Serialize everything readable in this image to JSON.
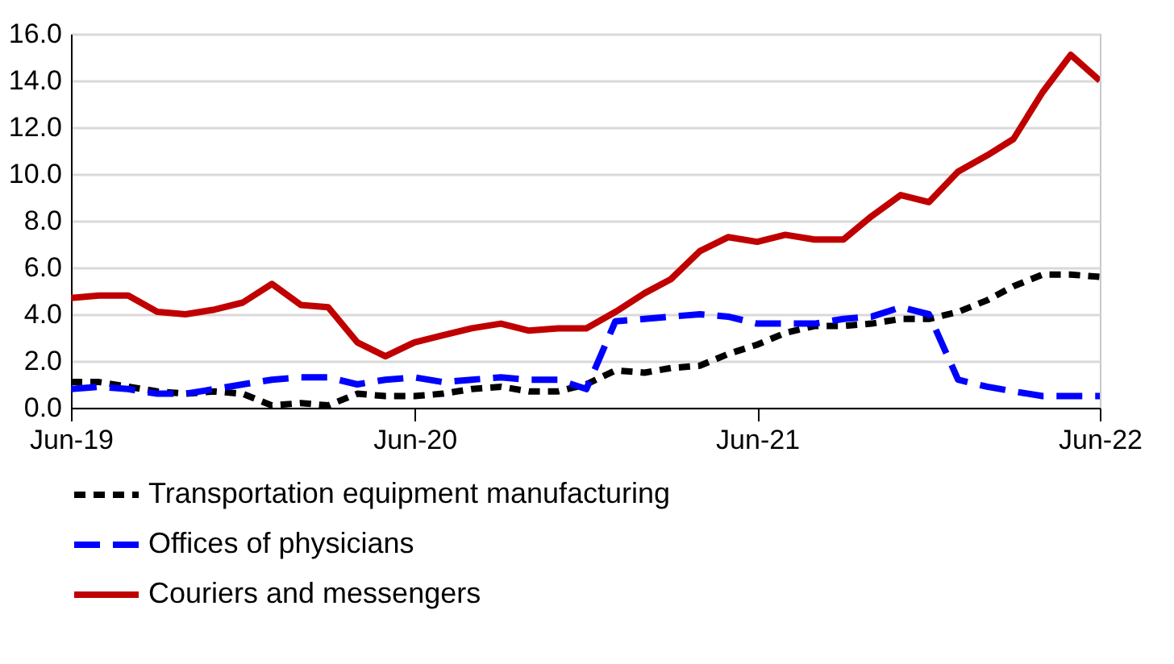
{
  "chart_data": {
    "type": "line",
    "x": [
      "2019-06",
      "2019-07",
      "2019-08",
      "2019-09",
      "2019-10",
      "2019-11",
      "2019-12",
      "2020-01",
      "2020-02",
      "2020-03",
      "2020-04",
      "2020-05",
      "2020-06",
      "2020-07",
      "2020-08",
      "2020-09",
      "2020-10",
      "2020-11",
      "2020-12",
      "2021-01",
      "2021-02",
      "2021-03",
      "2021-04",
      "2021-05",
      "2021-06",
      "2021-07",
      "2021-08",
      "2021-09",
      "2021-10",
      "2021-11",
      "2021-12",
      "2022-01",
      "2022-02",
      "2022-03",
      "2022-04",
      "2022-05",
      "2022-06"
    ],
    "series": [
      {
        "name": "Transportation equipment manufacturing",
        "color": "#000000",
        "line_style": "dotted",
        "values": [
          1.1,
          1.1,
          0.9,
          0.7,
          0.6,
          0.7,
          0.6,
          0.1,
          0.2,
          0.1,
          0.6,
          0.5,
          0.5,
          0.6,
          0.8,
          0.9,
          0.7,
          0.7,
          1.0,
          1.6,
          1.5,
          1.7,
          1.8,
          2.3,
          2.7,
          3.2,
          3.5,
          3.5,
          3.6,
          3.8,
          3.8,
          4.1,
          4.6,
          5.2,
          5.7,
          5.7,
          5.6
        ]
      },
      {
        "name": "Offices of physicians",
        "color": "#0000ff",
        "line_style": "dashed",
        "values": [
          0.8,
          0.9,
          0.8,
          0.6,
          0.6,
          0.8,
          1.0,
          1.2,
          1.3,
          1.3,
          1.0,
          1.2,
          1.3,
          1.1,
          1.2,
          1.3,
          1.2,
          1.2,
          0.8,
          3.7,
          3.8,
          3.9,
          4.0,
          3.9,
          3.6,
          3.6,
          3.6,
          3.8,
          3.9,
          4.3,
          4.0,
          1.2,
          0.9,
          0.7,
          0.5,
          0.5,
          0.5
        ]
      },
      {
        "name": "Couriers and messengers",
        "color": "#c00000",
        "line_style": "solid",
        "values": [
          4.7,
          4.8,
          4.8,
          4.1,
          4.0,
          4.2,
          4.5,
          5.3,
          4.4,
          4.3,
          2.8,
          2.2,
          2.8,
          3.1,
          3.4,
          3.6,
          3.3,
          3.4,
          3.4,
          4.1,
          4.9,
          5.5,
          6.7,
          7.3,
          7.1,
          7.4,
          7.2,
          7.2,
          8.2,
          9.1,
          8.8,
          10.1,
          10.8,
          11.5,
          13.5,
          15.1,
          14.0
        ]
      }
    ],
    "xlim": [
      "2019-06",
      "2022-06"
    ],
    "xticks": [
      {
        "value": "2019-06",
        "label": "Jun-19"
      },
      {
        "value": "2020-06",
        "label": "Jun-20"
      },
      {
        "value": "2021-06",
        "label": "Jun-21"
      },
      {
        "value": "2022-06",
        "label": "Jun-22"
      }
    ],
    "ylim": [
      0,
      16
    ],
    "yticks": [
      {
        "value": 0,
        "label": "0.0"
      },
      {
        "value": 2,
        "label": "2.0"
      },
      {
        "value": 4,
        "label": "4.0"
      },
      {
        "value": 6,
        "label": "6.0"
      },
      {
        "value": 8,
        "label": "8.0"
      },
      {
        "value": 10,
        "label": "10.0"
      },
      {
        "value": 12,
        "label": "12.0"
      },
      {
        "value": 14,
        "label": "14.0"
      },
      {
        "value": 16,
        "label": "16.0"
      }
    ],
    "grid": "y",
    "legend": "bottom"
  }
}
